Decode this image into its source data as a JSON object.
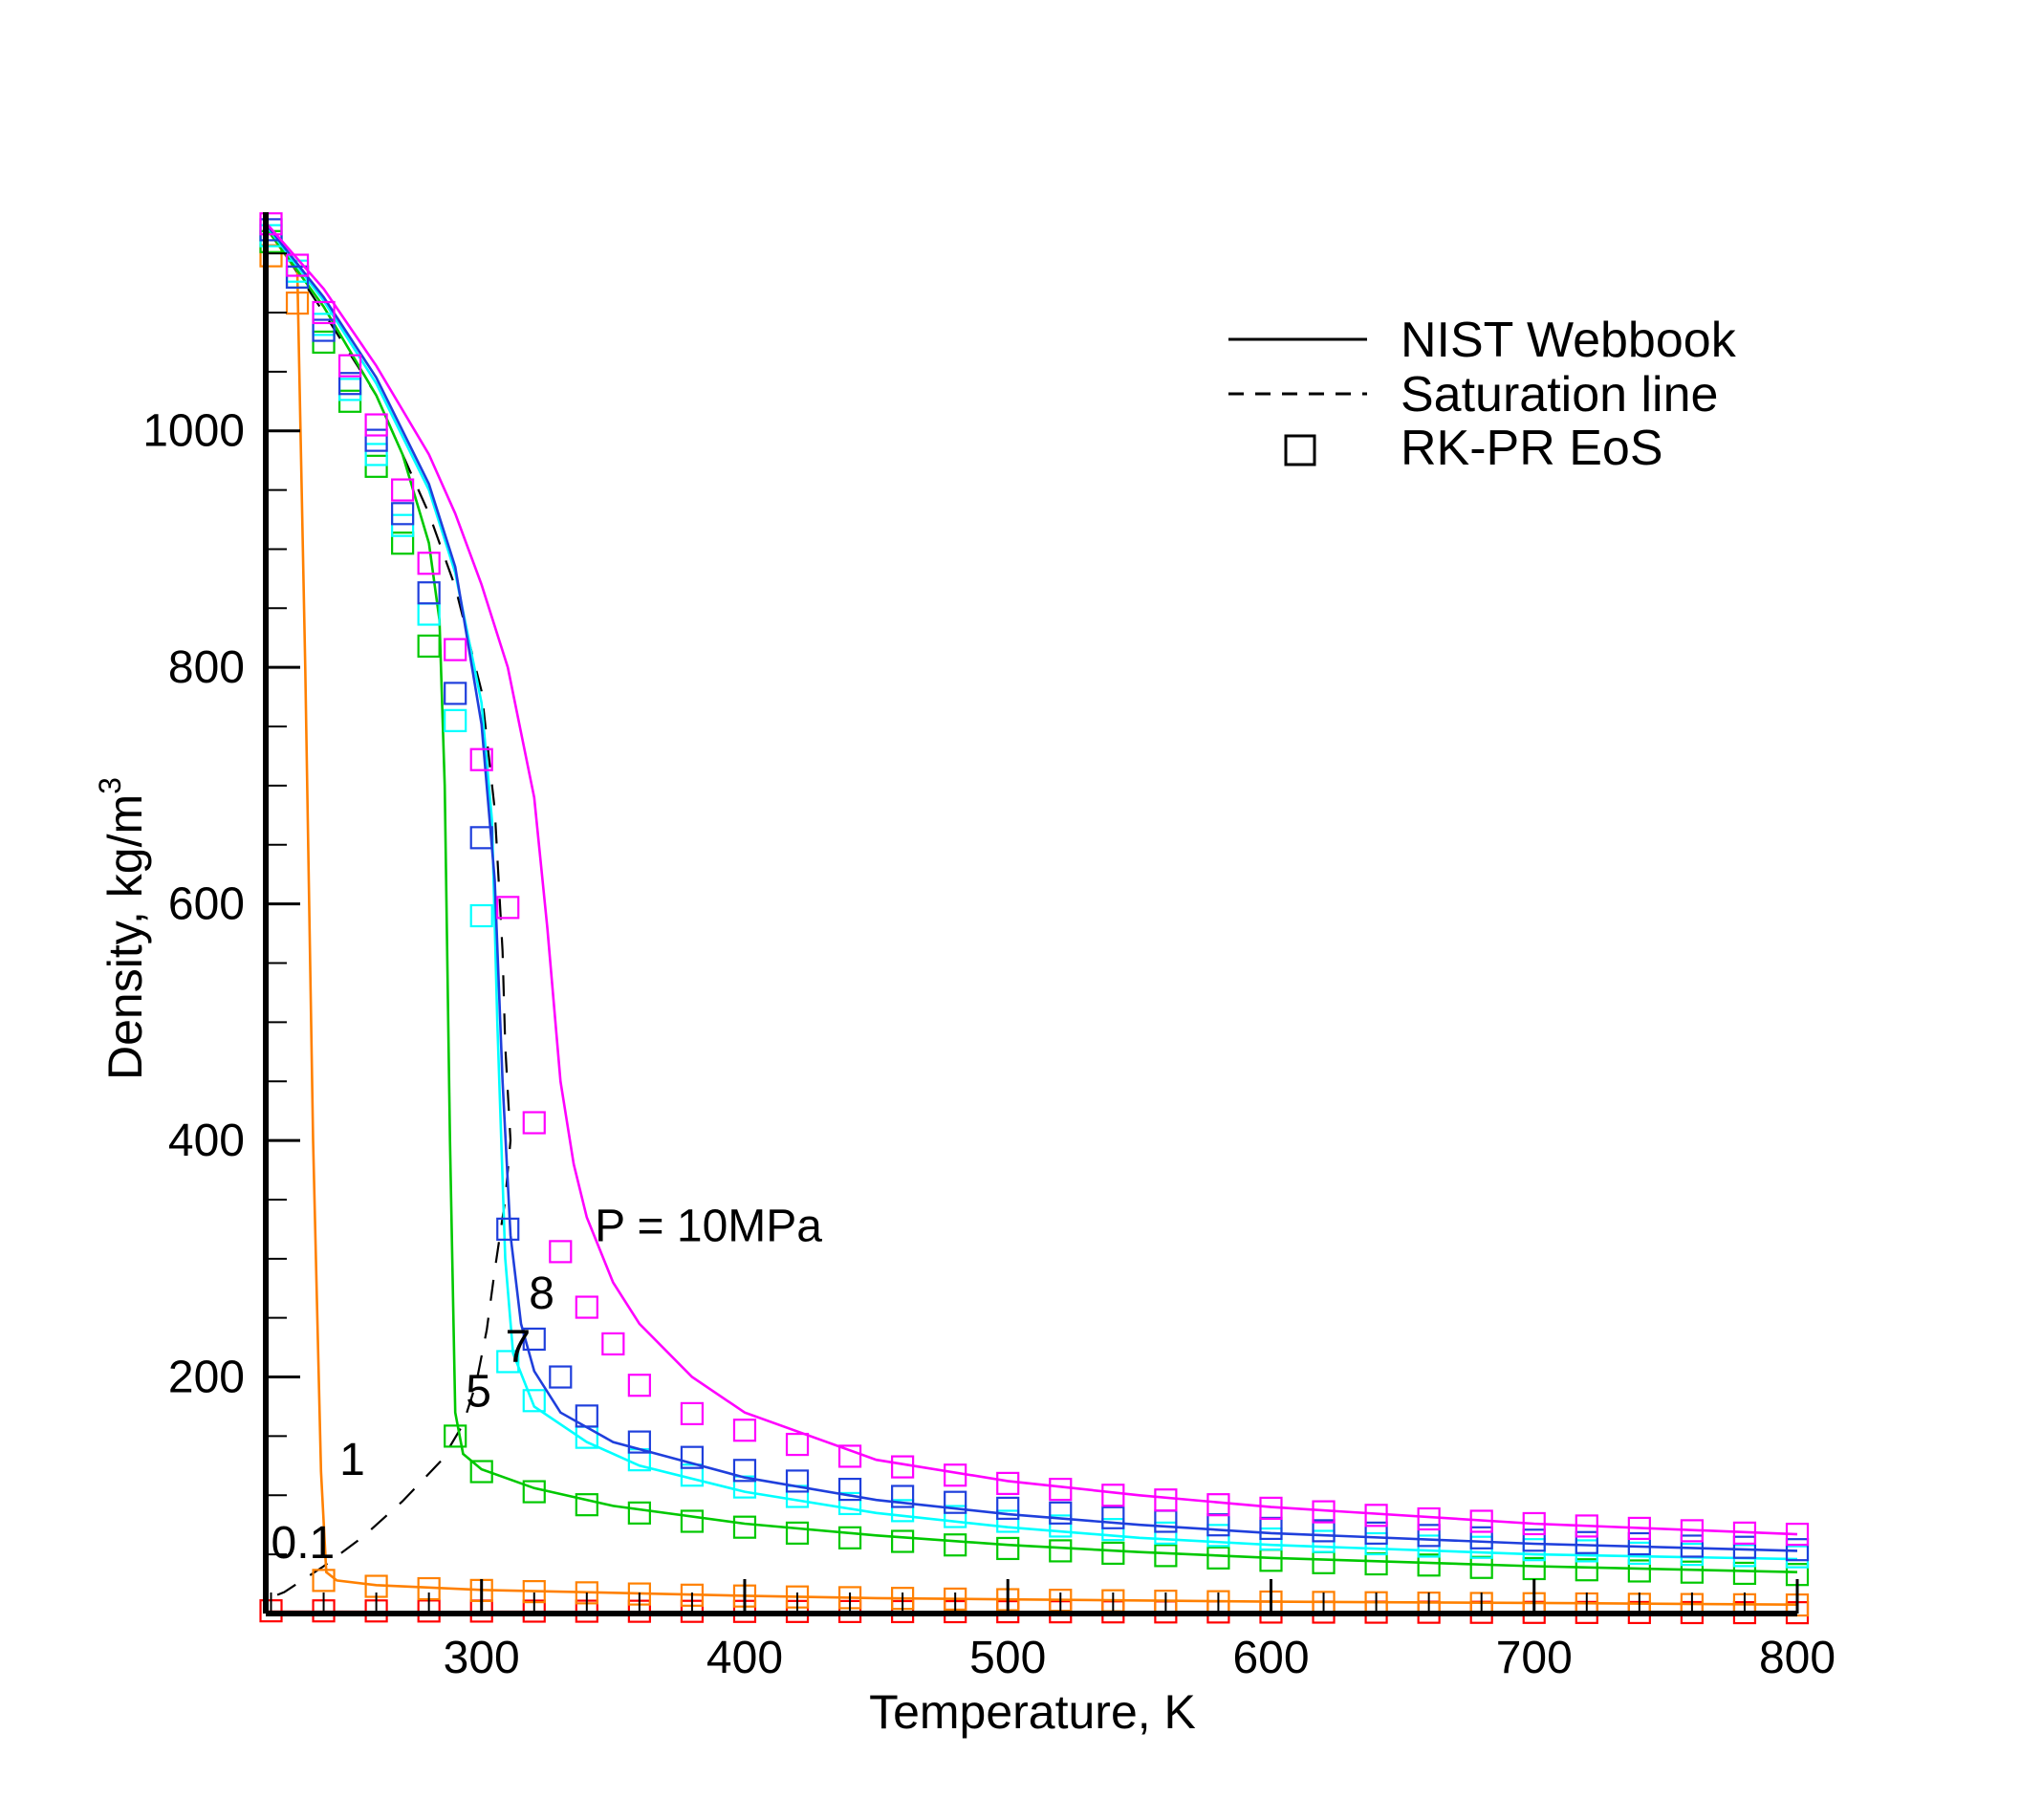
{
  "chart_data": {
    "type": "line",
    "title": "",
    "xlabel": "Temperature, K",
    "ylabel": "Density, kg/m",
    "ylabel_sup": "3",
    "xlim": [
      218,
      800
    ],
    "ylim": [
      0,
      1180
    ],
    "x_ticks": [
      300,
      400,
      500,
      600,
      700,
      800
    ],
    "y_ticks": [
      200,
      400,
      600,
      800,
      1000
    ],
    "x_tick_labels": [
      "300",
      "400",
      "500",
      "600",
      "700",
      "800"
    ],
    "y_tick_labels": [
      "200",
      "400",
      "600",
      "800",
      "1000"
    ],
    "grid": false,
    "legend": {
      "position": "top-right",
      "entries": [
        {
          "label": "NIST Webbook",
          "style": "solid-line"
        },
        {
          "label": "Saturation line",
          "style": "dashed-line"
        },
        {
          "label": "RK-PR EoS",
          "style": "square-marker"
        }
      ]
    },
    "annotations": [
      {
        "text": "P = 10MPa",
        "x": 343,
        "y": 315
      },
      {
        "text": "8",
        "x": 318,
        "y": 258
      },
      {
        "text": "7",
        "x": 309,
        "y": 213
      },
      {
        "text": "5",
        "x": 294,
        "y": 175
      },
      {
        "text": "1",
        "x": 246,
        "y": 117
      },
      {
        "text": "0.1",
        "x": 220,
        "y": 47
      }
    ],
    "series": [
      {
        "name": "0.1",
        "color": "#ff0000",
        "line": [
          [
            218,
            1.5
          ],
          [
            800,
            1.0
          ]
        ],
        "markers_x_start": 220,
        "markers_x_step": 20,
        "markers_x_end": 800,
        "markers": [
          [
            220,
            2.3
          ],
          [
            800,
            0.7
          ]
        ]
      },
      {
        "name": "1",
        "color": "#ff8000",
        "line": [
          [
            218,
            1172
          ],
          [
            225,
            1150
          ],
          [
            230,
            1135
          ],
          [
            233,
            800
          ],
          [
            236,
            400
          ],
          [
            239,
            120
          ],
          [
            241,
            35
          ],
          [
            245,
            28
          ],
          [
            260,
            24
          ],
          [
            300,
            20
          ],
          [
            350,
            17.5
          ],
          [
            400,
            15
          ],
          [
            450,
            13
          ],
          [
            500,
            12
          ],
          [
            600,
            10
          ],
          [
            700,
            9
          ],
          [
            800,
            7.5
          ]
        ],
        "markers": [
          [
            220,
            1148
          ],
          [
            230,
            1108
          ],
          [
            240,
            28
          ],
          [
            260,
            23
          ],
          [
            280,
            21
          ],
          [
            300,
            19.5
          ],
          [
            320,
            18.5
          ],
          [
            340,
            17.5
          ],
          [
            360,
            16.5
          ],
          [
            380,
            15.5
          ],
          [
            400,
            14.8
          ],
          [
            420,
            14
          ],
          [
            440,
            13.4
          ],
          [
            460,
            12.8
          ],
          [
            480,
            12.2
          ],
          [
            500,
            11.7
          ],
          [
            520,
            11.2
          ],
          [
            540,
            10.8
          ],
          [
            560,
            10.4
          ],
          [
            580,
            10
          ],
          [
            600,
            9.7
          ],
          [
            620,
            9.4
          ],
          [
            640,
            9.1
          ],
          [
            660,
            8.8
          ],
          [
            680,
            8.5
          ],
          [
            700,
            8.3
          ],
          [
            720,
            8.1
          ],
          [
            740,
            7.8
          ],
          [
            760,
            7.6
          ],
          [
            780,
            7.4
          ],
          [
            800,
            7.2
          ]
        ]
      },
      {
        "name": "5",
        "color": "#00c800",
        "line": [
          [
            218,
            1172
          ],
          [
            240,
            1105
          ],
          [
            260,
            1030
          ],
          [
            270,
            980
          ],
          [
            280,
            905
          ],
          [
            284,
            840
          ],
          [
            286,
            700
          ],
          [
            288,
            400
          ],
          [
            290,
            170
          ],
          [
            293,
            135
          ],
          [
            300,
            122
          ],
          [
            320,
            106
          ],
          [
            350,
            91
          ],
          [
            400,
            76
          ],
          [
            450,
            66
          ],
          [
            500,
            58
          ],
          [
            550,
            52
          ],
          [
            600,
            47
          ],
          [
            700,
            40
          ],
          [
            800,
            35
          ]
        ],
        "markers": [
          [
            220,
            1160
          ],
          [
            230,
            1130
          ],
          [
            240,
            1075
          ],
          [
            250,
            1025
          ],
          [
            260,
            970
          ],
          [
            270,
            905
          ],
          [
            280,
            818
          ],
          [
            290,
            150
          ],
          [
            300,
            120
          ],
          [
            320,
            103
          ],
          [
            340,
            92
          ],
          [
            360,
            85
          ],
          [
            380,
            78
          ],
          [
            400,
            73
          ],
          [
            420,
            68
          ],
          [
            440,
            64
          ],
          [
            460,
            61
          ],
          [
            480,
            58
          ],
          [
            500,
            55
          ],
          [
            520,
            53
          ],
          [
            540,
            51
          ],
          [
            560,
            49
          ],
          [
            580,
            47
          ],
          [
            600,
            45
          ],
          [
            620,
            43
          ],
          [
            640,
            42
          ],
          [
            660,
            41
          ],
          [
            680,
            39
          ],
          [
            700,
            38
          ],
          [
            720,
            37
          ],
          [
            740,
            36
          ],
          [
            760,
            35
          ],
          [
            780,
            34
          ],
          [
            800,
            33
          ]
        ]
      },
      {
        "name": "7",
        "color": "#00ffff",
        "line": [
          [
            218,
            1174
          ],
          [
            240,
            1110
          ],
          [
            260,
            1040
          ],
          [
            280,
            950
          ],
          [
            290,
            880
          ],
          [
            300,
            770
          ],
          [
            304,
            670
          ],
          [
            306,
            500
          ],
          [
            309,
            300
          ],
          [
            312,
            220
          ],
          [
            320,
            175
          ],
          [
            340,
            145
          ],
          [
            360,
            125
          ],
          [
            400,
            103
          ],
          [
            450,
            85
          ],
          [
            500,
            73
          ],
          [
            550,
            64
          ],
          [
            600,
            58
          ],
          [
            700,
            50
          ],
          [
            800,
            46
          ]
        ],
        "markers": [
          [
            220,
            1165
          ],
          [
            230,
            1135
          ],
          [
            240,
            1090
          ],
          [
            250,
            1035
          ],
          [
            260,
            980
          ],
          [
            270,
            920
          ],
          [
            280,
            845
          ],
          [
            290,
            755
          ],
          [
            300,
            590
          ],
          [
            310,
            213
          ],
          [
            320,
            180
          ],
          [
            340,
            149
          ],
          [
            360,
            130
          ],
          [
            380,
            117
          ],
          [
            400,
            107
          ],
          [
            420,
            99
          ],
          [
            440,
            93
          ],
          [
            460,
            87
          ],
          [
            480,
            82
          ],
          [
            500,
            78
          ],
          [
            520,
            74
          ],
          [
            540,
            71
          ],
          [
            560,
            68
          ],
          [
            580,
            66
          ],
          [
            600,
            63
          ],
          [
            620,
            61
          ],
          [
            640,
            59
          ],
          [
            660,
            57
          ],
          [
            680,
            56
          ],
          [
            700,
            54
          ],
          [
            720,
            53
          ],
          [
            740,
            51
          ],
          [
            760,
            50
          ],
          [
            780,
            49
          ],
          [
            800,
            48
          ]
        ]
      },
      {
        "name": "blue",
        "color": "#1f3fdc",
        "line": [
          [
            218,
            1175
          ],
          [
            240,
            1113
          ],
          [
            260,
            1045
          ],
          [
            280,
            955
          ],
          [
            290,
            885
          ],
          [
            300,
            752
          ],
          [
            305,
            620
          ],
          [
            308,
            450
          ],
          [
            311,
            320
          ],
          [
            315,
            245
          ],
          [
            320,
            205
          ],
          [
            330,
            170
          ],
          [
            350,
            145
          ],
          [
            400,
            115
          ],
          [
            450,
            96
          ],
          [
            500,
            84
          ],
          [
            550,
            75
          ],
          [
            600,
            68
          ],
          [
            700,
            59
          ],
          [
            800,
            53
          ]
        ],
        "markers": [
          [
            220,
            1170
          ],
          [
            230,
            1130
          ],
          [
            240,
            1085
          ],
          [
            250,
            1040
          ],
          [
            260,
            992
          ],
          [
            270,
            930
          ],
          [
            280,
            863
          ],
          [
            290,
            778
          ],
          [
            300,
            656
          ],
          [
            310,
            325
          ],
          [
            320,
            232
          ],
          [
            330,
            200
          ],
          [
            340,
            167
          ],
          [
            360,
            145
          ],
          [
            380,
            132
          ],
          [
            400,
            121
          ],
          [
            420,
            112
          ],
          [
            440,
            105
          ],
          [
            460,
            99
          ],
          [
            480,
            94
          ],
          [
            500,
            89
          ],
          [
            520,
            85
          ],
          [
            540,
            81
          ],
          [
            560,
            78
          ],
          [
            580,
            75
          ],
          [
            600,
            72
          ],
          [
            620,
            70
          ],
          [
            640,
            68
          ],
          [
            660,
            66
          ],
          [
            680,
            64
          ],
          [
            700,
            62
          ],
          [
            720,
            60
          ],
          [
            740,
            59
          ],
          [
            760,
            57
          ],
          [
            780,
            56
          ],
          [
            800,
            54
          ]
        ]
      },
      {
        "name": "8",
        "color": "#ff00ff",
        "line": [
          [
            218,
            1176
          ],
          [
            240,
            1120
          ],
          [
            260,
            1055
          ],
          [
            280,
            980
          ],
          [
            290,
            930
          ],
          [
            300,
            870
          ],
          [
            310,
            800
          ],
          [
            320,
            690
          ],
          [
            325,
            580
          ],
          [
            330,
            450
          ],
          [
            335,
            380
          ],
          [
            340,
            335
          ],
          [
            350,
            280
          ],
          [
            360,
            245
          ],
          [
            380,
            200
          ],
          [
            400,
            170
          ],
          [
            450,
            130
          ],
          [
            500,
            112
          ],
          [
            550,
            100
          ],
          [
            600,
            90
          ],
          [
            700,
            76
          ],
          [
            800,
            67
          ]
        ],
        "markers": [
          [
            220,
            1175
          ],
          [
            230,
            1140
          ],
          [
            240,
            1100
          ],
          [
            250,
            1055
          ],
          [
            260,
            1005
          ],
          [
            270,
            950
          ],
          [
            280,
            888
          ],
          [
            290,
            815
          ],
          [
            300,
            722
          ],
          [
            310,
            597
          ],
          [
            320,
            415
          ],
          [
            330,
            306
          ],
          [
            340,
            259
          ],
          [
            350,
            228
          ],
          [
            360,
            193
          ],
          [
            380,
            169
          ],
          [
            400,
            155
          ],
          [
            420,
            143
          ],
          [
            440,
            133
          ],
          [
            460,
            124
          ],
          [
            480,
            117
          ],
          [
            500,
            110
          ],
          [
            520,
            105
          ],
          [
            540,
            100
          ],
          [
            560,
            96
          ],
          [
            580,
            92
          ],
          [
            600,
            89
          ],
          [
            620,
            86
          ],
          [
            640,
            83
          ],
          [
            660,
            80
          ],
          [
            680,
            78
          ],
          [
            700,
            76
          ],
          [
            720,
            74
          ],
          [
            740,
            72
          ],
          [
            760,
            70
          ],
          [
            780,
            68
          ],
          [
            800,
            67
          ]
        ]
      }
    ],
    "saturation_line": [
      [
        218,
        1174
      ],
      [
        240,
        1100
      ],
      [
        260,
        1030
      ],
      [
        280,
        930
      ],
      [
        290,
        868
      ],
      [
        300,
        780
      ],
      [
        305,
        680
      ],
      [
        308,
        560
      ],
      [
        309,
        480
      ],
      [
        311,
        400
      ],
      [
        309,
        350
      ],
      [
        305,
        290
      ],
      [
        302,
        240
      ],
      [
        298,
        195
      ],
      [
        293,
        160
      ],
      [
        285,
        130
      ],
      [
        270,
        95
      ],
      [
        255,
        65
      ],
      [
        240,
        40
      ],
      [
        225,
        18
      ],
      [
        218,
        12
      ]
    ]
  }
}
